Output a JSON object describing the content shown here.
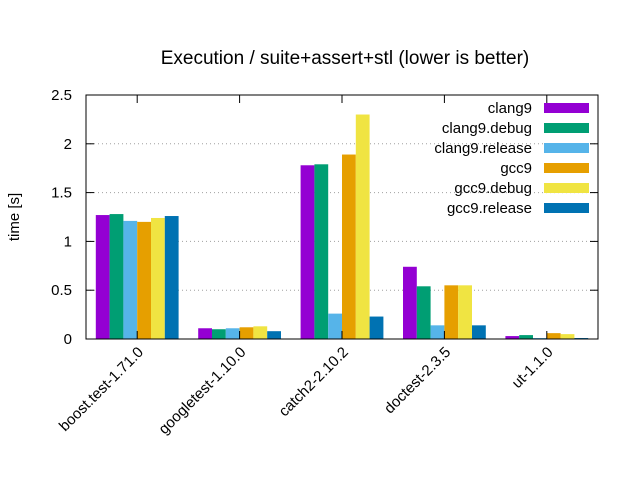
{
  "chart_data": {
    "type": "bar",
    "title": "Execution / suite+assert+stl (lower is better)",
    "xlabel": "",
    "ylabel": "time [s]",
    "ylim": [
      0,
      2.5
    ],
    "yticks": [
      "0",
      "0.5",
      "1",
      "1.5",
      "2",
      "2.5"
    ],
    "grid": "horizontal dotted",
    "legend_position": "top-right",
    "categories": [
      "boost.test-1.71.0",
      "googletest-1.10.0",
      "catch2-2.10.2",
      "doctest-2.3.5",
      "ut-1.1.0"
    ],
    "series": [
      {
        "name": "clang9",
        "color": "#9400d3",
        "values": [
          1.27,
          0.11,
          1.78,
          0.74,
          0.03
        ]
      },
      {
        "name": "clang9.debug",
        "color": "#009e73",
        "values": [
          1.28,
          0.1,
          1.79,
          0.54,
          0.04
        ]
      },
      {
        "name": "clang9.release",
        "color": "#56b4e9",
        "values": [
          1.21,
          0.11,
          0.26,
          0.14,
          0.01
        ]
      },
      {
        "name": "gcc9",
        "color": "#e69f00",
        "values": [
          1.2,
          0.12,
          1.89,
          0.55,
          0.06
        ]
      },
      {
        "name": "gcc9.debug",
        "color": "#f0e442",
        "values": [
          1.24,
          0.13,
          2.3,
          0.55,
          0.05
        ]
      },
      {
        "name": "gcc9.release",
        "color": "#0072b2",
        "values": [
          1.26,
          0.08,
          0.23,
          0.14,
          0.01
        ]
      }
    ]
  }
}
